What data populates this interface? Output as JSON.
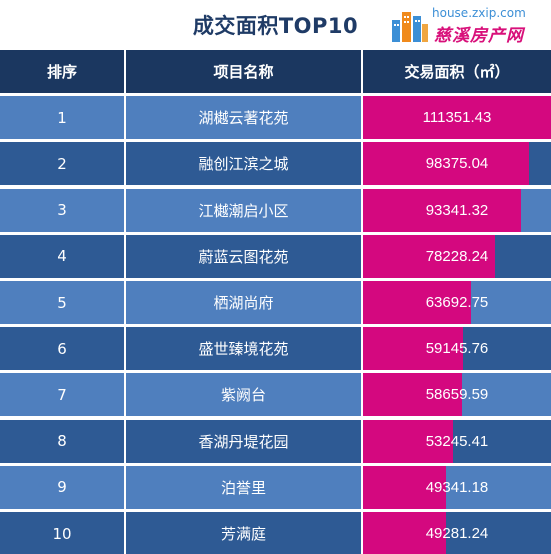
{
  "title": "成交面积TOP10",
  "logo": {
    "domain": "house.zxip.com",
    "name": "慈溪房产网"
  },
  "colors": {
    "header_bg": "#1b3760",
    "row_light": "#4f7fbe",
    "row_dark": "#2e5a94",
    "bar": "#d4087f",
    "title": "#1f3b66"
  },
  "chart_data": {
    "type": "table",
    "title": "成交面积TOP10",
    "columns": [
      "排序",
      "项目名称",
      "交易面积（㎡）"
    ],
    "rows": [
      {
        "rank": "1",
        "name": "湖樾云著花苑",
        "area": 111351.43
      },
      {
        "rank": "2",
        "name": "融创江滨之城",
        "area": 98375.04
      },
      {
        "rank": "3",
        "name": "江樾潮启小区",
        "area": 93341.32
      },
      {
        "rank": "4",
        "name": "蔚蓝云图花苑",
        "area": 78228.24
      },
      {
        "rank": "5",
        "name": "栖湖尚府",
        "area": 63692.75
      },
      {
        "rank": "6",
        "name": "盛世臻境花苑",
        "area": 59145.76
      },
      {
        "rank": "7",
        "name": "紫阙台",
        "area": 58659.59
      },
      {
        "rank": "8",
        "name": "香湖丹堤花园",
        "area": 53245.41
      },
      {
        "rank": "9",
        "name": "泊誉里",
        "area": 49341.18
      },
      {
        "rank": "10",
        "name": "芳满庭",
        "area": 49281.24
      }
    ],
    "bar_max": 111351.43
  }
}
